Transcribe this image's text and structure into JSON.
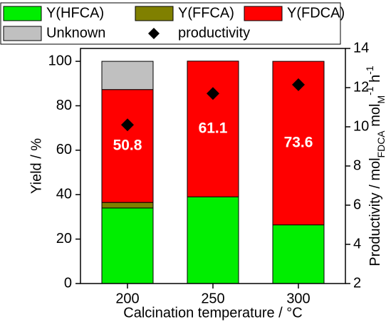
{
  "chart_data": {
    "type": "bar",
    "stacked": true,
    "categories": [
      "200",
      "250",
      "300"
    ],
    "xlabel": "Calcination temperature / °C",
    "ylabel": "Yield / %",
    "y2label": [
      "Productivity / mol",
      "FDCA",
      " mol",
      "M",
      "-1",
      " h",
      "-1"
    ],
    "ylim": [
      0,
      105.8
    ],
    "yticks": [
      0,
      20,
      40,
      60,
      80,
      100
    ],
    "y2lim": [
      2,
      14
    ],
    "y2ticks": [
      2,
      4,
      6,
      8,
      10,
      12,
      14
    ],
    "series": [
      {
        "name": "Y(HFCA)",
        "color": "#00ee00",
        "values": [
          34,
          39,
          26.4
        ]
      },
      {
        "name": "Y(FFCA)",
        "color": "#808000",
        "values": [
          2.5,
          0,
          0
        ]
      },
      {
        "name": "Y(FDCA)",
        "color": "#ff0000",
        "values": [
          50.8,
          61.1,
          73.6
        ],
        "data_labels": true
      },
      {
        "name": "Unknown",
        "color": "#c0c0c0",
        "values": [
          12.7,
          0,
          0
        ]
      },
      {
        "name": "productivity",
        "type": "scatter",
        "axis": "y2",
        "color": "#000000",
        "values": [
          10.1,
          11.7,
          12.15
        ]
      }
    ]
  }
}
